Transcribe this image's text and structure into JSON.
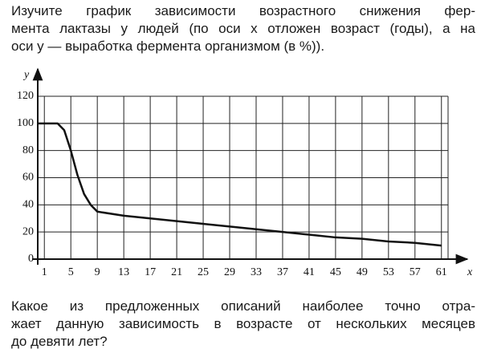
{
  "text_top": [
    "Изучите график зависимости возрастного снижения фер-",
    "мента лактазы у людей (по оси x отложен возраст (годы), а на",
    "оси y — выработка фермента организмом (в %))."
  ],
  "chart_data": {
    "type": "line",
    "x_label": "x",
    "y_label": "y",
    "x": [
      0,
      2,
      3,
      4,
      5,
      6,
      7,
      8,
      9,
      13,
      17,
      21,
      25,
      29,
      33,
      37,
      41,
      45,
      49,
      53,
      57,
      61
    ],
    "series": [
      {
        "color": "#111111",
        "values": [
          100,
          100,
          100,
          95,
          80,
          62,
          48,
          40,
          35,
          32,
          30,
          28,
          26,
          24,
          22,
          20,
          18,
          16,
          15,
          13,
          12,
          10
        ]
      }
    ],
    "xlim": [
      0,
      62
    ],
    "ylim": [
      0,
      120
    ],
    "xticks": [
      1,
      5,
      9,
      13,
      17,
      21,
      25,
      29,
      33,
      37,
      41,
      45,
      49,
      53,
      57,
      61
    ],
    "yticks": [
      0,
      20,
      40,
      60,
      80,
      100,
      120
    ],
    "grid": true
  },
  "text_bottom": [
    "Какое из предложенных описаний наиболее точно отра-",
    "жает данную зависимость в возрасте от нескольких месяцев",
    "до девяти лет?"
  ]
}
